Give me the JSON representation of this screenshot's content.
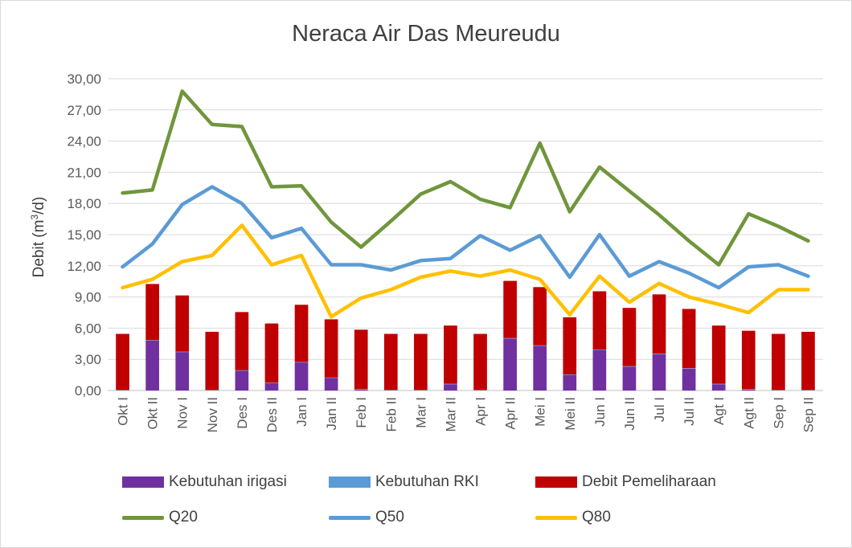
{
  "chart_data": {
    "type": "bar",
    "title": "Neraca Air Das Meureudu",
    "ylabel": "Debit (m³/d)",
    "ylabel_parts": {
      "pre": "Debit (m",
      "sup": "3",
      "post": "/d)"
    },
    "ylim": [
      0,
      30
    ],
    "yticks": [
      "0,00",
      "3,00",
      "6,00",
      "9,00",
      "12,00",
      "15,00",
      "18,00",
      "21,00",
      "24,00",
      "27,00",
      "30,00"
    ],
    "grid": true,
    "legend_position": "bottom",
    "categories": [
      "Okt I",
      "Okt II",
      "Nov I",
      "Nov II",
      "Des I",
      "Des II",
      "Jan I",
      "Jan II",
      "Feb I",
      "Feb II",
      "Mar I",
      "Mar II",
      "Apr I",
      "Apr II",
      "Mei I",
      "Mei II",
      "Jun I",
      "Jun II",
      "Jul I",
      "Jul II",
      "Agt I",
      "Agt II",
      "Sep I",
      "Sep II"
    ],
    "bars": [
      {
        "name": "Kebutuhan irigasi",
        "color": "#7030a0",
        "values": [
          0,
          4.8,
          3.7,
          0,
          1.9,
          0.7,
          2.7,
          1.2,
          0.1,
          0,
          0,
          0.6,
          0,
          5.0,
          4.3,
          1.5,
          3.9,
          2.3,
          3.5,
          2.1,
          0.6,
          0.1,
          0,
          0
        ]
      },
      {
        "name": "Kebutuhan RKI",
        "color": "#5b9bd5",
        "values": [
          0.05,
          0.05,
          0.05,
          0.05,
          0.05,
          0.05,
          0.05,
          0.05,
          0.05,
          0.05,
          0.05,
          0.05,
          0.05,
          0.05,
          0.05,
          0.05,
          0.05,
          0.05,
          0.05,
          0.05,
          0.05,
          0.05,
          0.05,
          0.05
        ]
      },
      {
        "name": "Debit Pemeliharaan",
        "color": "#c00000",
        "values": [
          5.4,
          5.4,
          5.4,
          5.6,
          5.6,
          5.7,
          5.5,
          5.6,
          5.7,
          5.4,
          5.4,
          5.6,
          5.4,
          5.5,
          5.6,
          5.5,
          5.6,
          5.6,
          5.7,
          5.7,
          5.6,
          5.6,
          5.4,
          5.6
        ]
      }
    ],
    "series": [
      {
        "name": "Q20",
        "color": "#70963c",
        "values": [
          19.0,
          19.3,
          28.8,
          25.6,
          25.4,
          19.6,
          19.7,
          16.2,
          13.8,
          16.3,
          18.9,
          20.1,
          18.4,
          17.6,
          23.8,
          17.2,
          21.5,
          19.2,
          16.9,
          14.4,
          12.1,
          17.0,
          15.8,
          14.4
        ]
      },
      {
        "name": "Q50",
        "color": "#5b9bd5",
        "values": [
          11.9,
          14.1,
          17.9,
          19.6,
          18.0,
          14.7,
          15.6,
          12.1,
          12.1,
          11.6,
          12.5,
          12.7,
          14.9,
          13.5,
          14.9,
          10.9,
          15.0,
          11.0,
          12.4,
          11.3,
          9.9,
          11.9,
          12.1,
          11.0
        ]
      },
      {
        "name": "Q80",
        "color": "#ffc000",
        "values": [
          9.9,
          10.7,
          12.4,
          13.0,
          15.9,
          12.1,
          13.0,
          7.1,
          8.9,
          9.7,
          10.9,
          11.5,
          11.0,
          11.6,
          10.7,
          7.3,
          11.0,
          8.5,
          10.3,
          9.0,
          8.3,
          7.5,
          9.7,
          9.7
        ]
      }
    ]
  }
}
